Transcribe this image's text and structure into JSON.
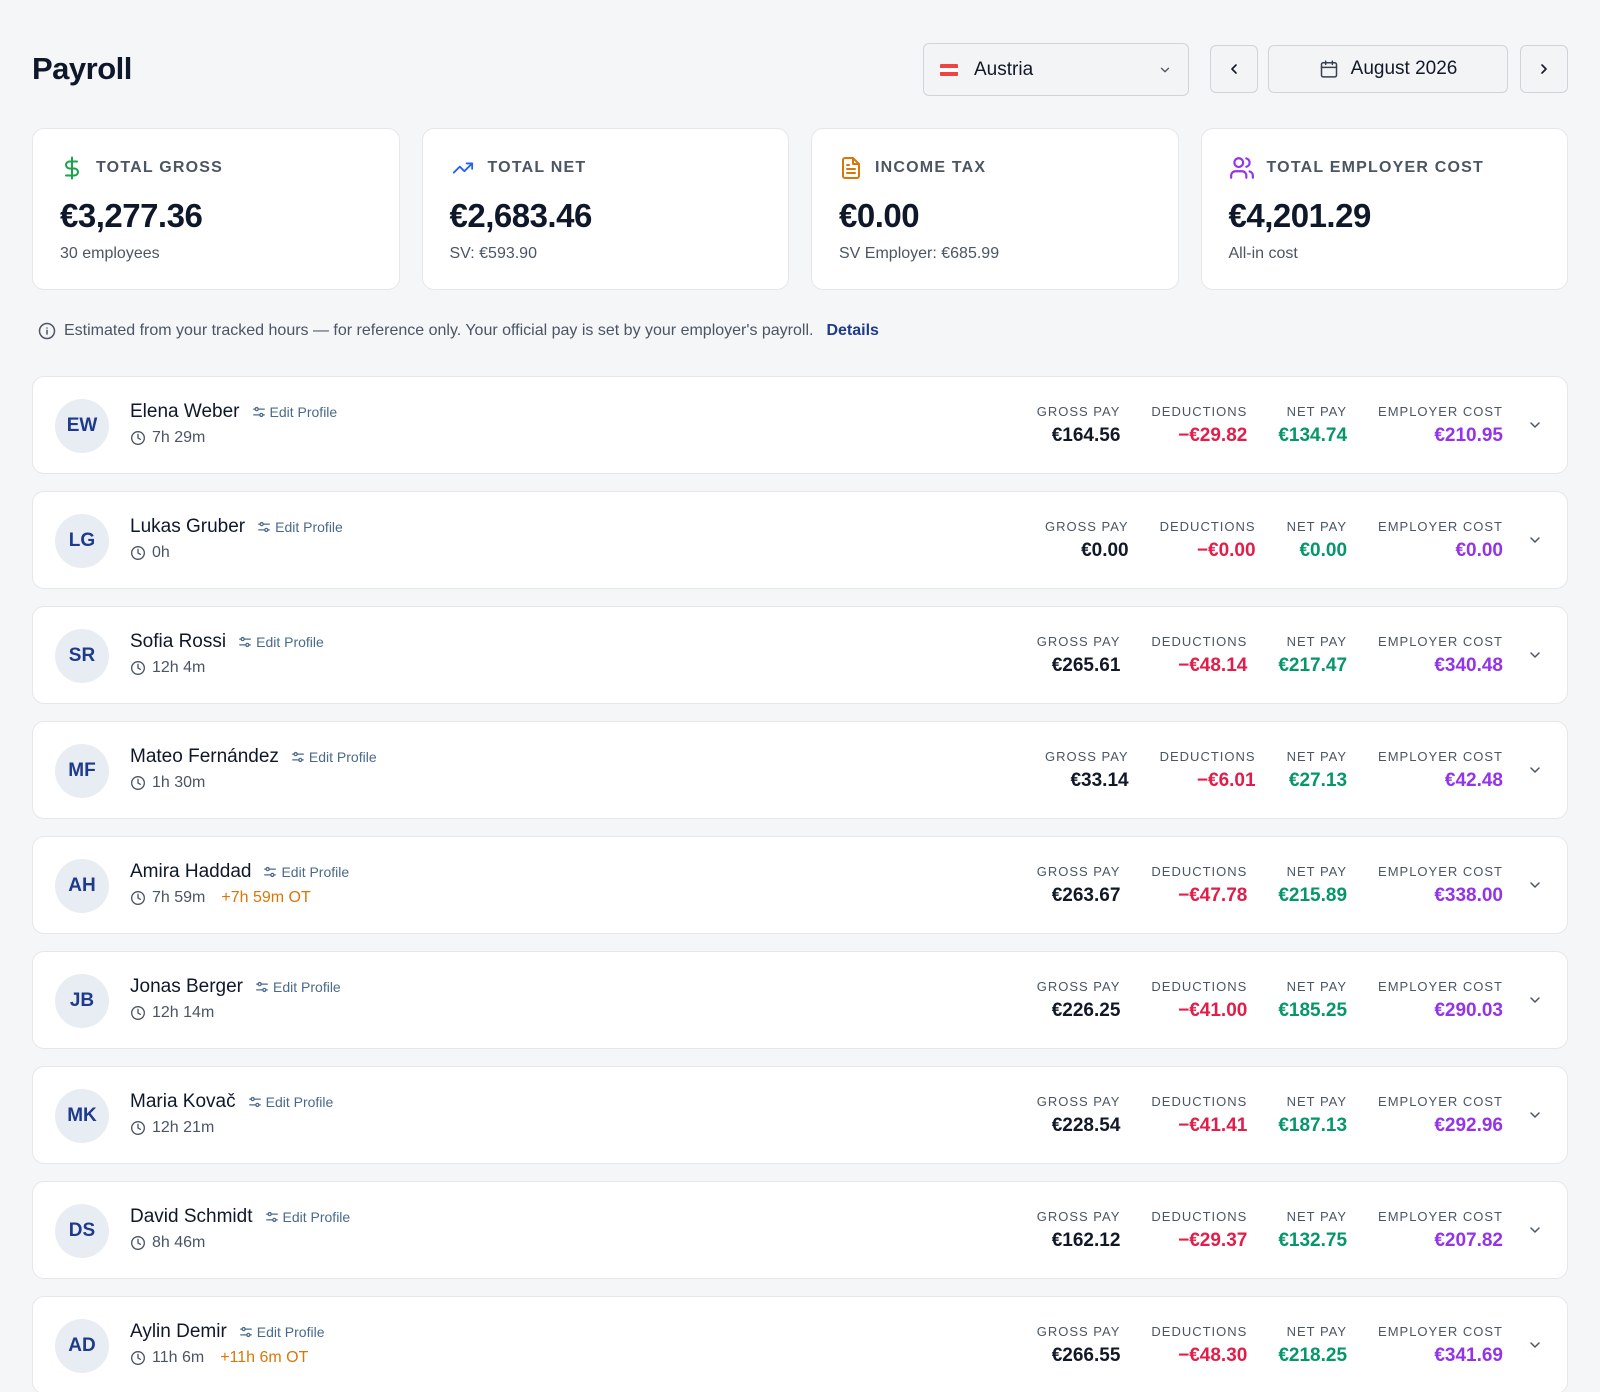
{
  "header": {
    "title": "Payroll",
    "country": "Austria",
    "month": "August 2026"
  },
  "stats": [
    {
      "label": "TOTAL GROSS",
      "value": "€3,277.36",
      "sub": "30 employees",
      "icon": "dollar-icon",
      "color": "#16a34a"
    },
    {
      "label": "TOTAL NET",
      "value": "€2,683.46",
      "sub": "SV: €593.90",
      "icon": "trending-up-icon",
      "color": "#2563eb"
    },
    {
      "label": "INCOME TAX",
      "value": "€0.00",
      "sub": "SV Employer: €685.99",
      "icon": "document-icon",
      "color": "#d97706"
    },
    {
      "label": "TOTAL EMPLOYER COST",
      "value": "€4,201.29",
      "sub": "All-in cost",
      "icon": "users-icon",
      "color": "#9333ea"
    }
  ],
  "notice": {
    "text": "Estimated from your tracked hours — for reference only. Your official pay is set by your employer's payroll.",
    "link": "Details"
  },
  "labels": {
    "edit_profile": "Edit Profile",
    "gross": "GROSS PAY",
    "deductions": "DEDUCTIONS",
    "net": "NET PAY",
    "employer": "EMPLOYER COST"
  },
  "colors": {
    "deductions": "#e11d48",
    "net": "#059669",
    "employer": "#9333ea",
    "overtime": "#d97706",
    "avatar_text": "#1e3a8a"
  },
  "employees": [
    {
      "initials": "EW",
      "name": "Elena Weber",
      "hours": "7h 29m",
      "ot": "",
      "gross": "€164.56",
      "deductions": "−€29.82",
      "net": "€134.74",
      "employer": "€210.95"
    },
    {
      "initials": "LG",
      "name": "Lukas Gruber",
      "hours": "0h",
      "ot": "",
      "gross": "€0.00",
      "deductions": "−€0.00",
      "net": "€0.00",
      "employer": "€0.00"
    },
    {
      "initials": "SR",
      "name": "Sofia Rossi",
      "hours": "12h 4m",
      "ot": "",
      "gross": "€265.61",
      "deductions": "−€48.14",
      "net": "€217.47",
      "employer": "€340.48"
    },
    {
      "initials": "MF",
      "name": "Mateo Fernández",
      "hours": "1h 30m",
      "ot": "",
      "gross": "€33.14",
      "deductions": "−€6.01",
      "net": "€27.13",
      "employer": "€42.48"
    },
    {
      "initials": "AH",
      "name": "Amira Haddad",
      "hours": "7h 59m",
      "ot": "+7h 59m OT",
      "gross": "€263.67",
      "deductions": "−€47.78",
      "net": "€215.89",
      "employer": "€338.00"
    },
    {
      "initials": "JB",
      "name": "Jonas Berger",
      "hours": "12h 14m",
      "ot": "",
      "gross": "€226.25",
      "deductions": "−€41.00",
      "net": "€185.25",
      "employer": "€290.03"
    },
    {
      "initials": "MK",
      "name": "Maria Kovač",
      "hours": "12h 21m",
      "ot": "",
      "gross": "€228.54",
      "deductions": "−€41.41",
      "net": "€187.13",
      "employer": "€292.96"
    },
    {
      "initials": "DS",
      "name": "David Schmidt",
      "hours": "8h 46m",
      "ot": "",
      "gross": "€162.12",
      "deductions": "−€29.37",
      "net": "€132.75",
      "employer": "€207.82"
    },
    {
      "initials": "AD",
      "name": "Aylin Demir",
      "hours": "11h 6m",
      "ot": "+11h 6m OT",
      "gross": "€266.55",
      "deductions": "−€48.30",
      "net": "€218.25",
      "employer": "€341.69"
    }
  ]
}
